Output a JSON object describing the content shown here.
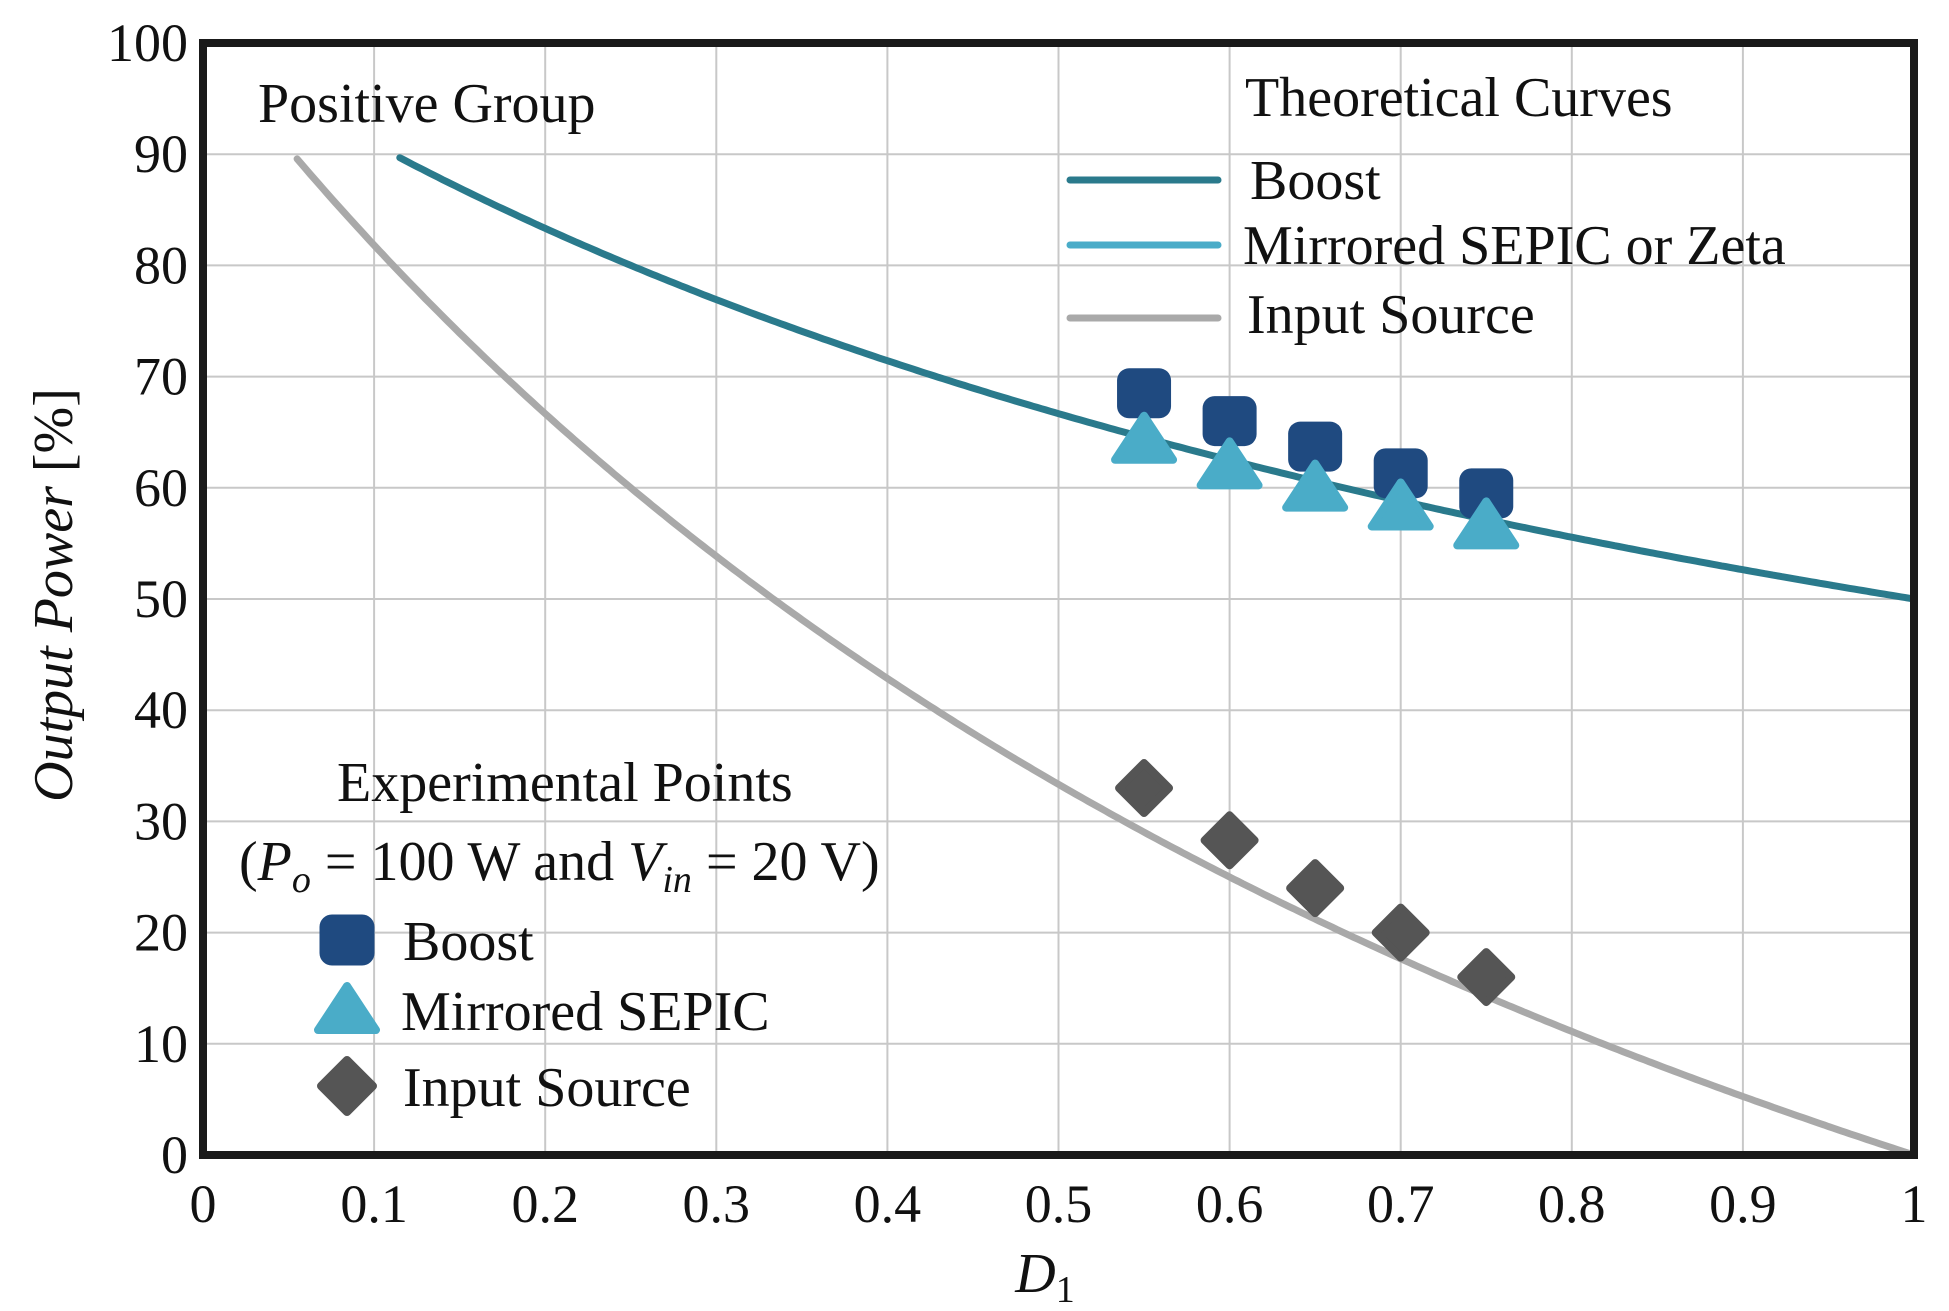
{
  "chart_data": {
    "type": "line",
    "title": "",
    "annotation": "Positive Group",
    "xlabel": {
      "italic": "D",
      "sub": "1"
    },
    "ylabel": {
      "italic": "Output Power",
      "normal": " [%]"
    },
    "xlim": [
      0,
      1
    ],
    "ylim": [
      0,
      100
    ],
    "xticks": [
      0,
      0.1,
      0.2,
      0.3,
      0.4,
      0.5,
      0.6,
      0.7,
      0.8,
      0.9,
      1
    ],
    "xtick_labels": [
      "0",
      "0.1",
      "0.2",
      "0.3",
      "0.4",
      "0.5",
      "0.6",
      "0.7",
      "0.8",
      "0.9",
      "1"
    ],
    "yticks": [
      0,
      10,
      20,
      30,
      40,
      50,
      60,
      70,
      80,
      90,
      100
    ],
    "ytick_labels": [
      "0",
      "10",
      "20",
      "30",
      "40",
      "50",
      "60",
      "70",
      "80",
      "90",
      "100"
    ],
    "grid": true,
    "theoretical_title": "Theoretical Curves",
    "theoretical_curves": [
      {
        "name": "Boost",
        "color": "#2a7a8c",
        "formula": "100/(1+D)"
      },
      {
        "name": "Mirrored SEPIC or Zeta",
        "color": "#4aacc8",
        "formula": "100/(1+D)"
      },
      {
        "name": "Input Source",
        "color": "#a9a9a9",
        "formula": "100*(1-D)/(1+D)"
      }
    ],
    "experimental_title": "Experimental Points",
    "experimental_condition": {
      "open": "(",
      "p": "P",
      "p_sub": "o",
      "mid": " = 100 W and ",
      "v": "V",
      "v_sub": "in",
      "end": " = 20 V)"
    },
    "experimental_x": [
      0.55,
      0.6,
      0.65,
      0.7,
      0.75
    ],
    "experimental_series": [
      {
        "name": "Boost",
        "marker": "square",
        "color": "#1f4a80",
        "values": [
          68.5,
          66,
          63.7,
          61.3,
          59.5
        ]
      },
      {
        "name": "Mirrored SEPIC",
        "marker": "triangle",
        "color": "#4aacc8",
        "values": [
          64.5,
          62.2,
          60.2,
          58.5,
          56.8
        ]
      },
      {
        "name": "Input Source",
        "marker": "diamond",
        "color": "#555555",
        "values": [
          33,
          28.3,
          24,
          20,
          16
        ]
      }
    ]
  }
}
